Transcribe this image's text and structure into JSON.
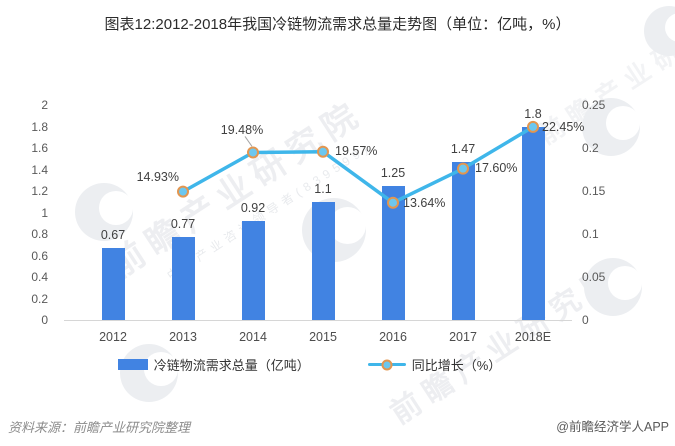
{
  "title": "图表12:2012-2018年我国冷链物流需求总量走势图（单位：亿吨，%）",
  "chart_data": {
    "type": "combo",
    "categories": [
      "2012",
      "2013",
      "2014",
      "2015",
      "2016",
      "2017",
      "2018E"
    ],
    "series": [
      {
        "name": "冷链物流需求总量（亿吨）",
        "type": "bar",
        "axis": "left",
        "color": "#4183e2",
        "values": [
          0.67,
          0.77,
          0.92,
          1.1,
          1.25,
          1.47,
          1.8
        ],
        "labels": [
          "0.67",
          "0.77",
          "0.92",
          "1.1",
          "1.25",
          "1.47",
          "1.8"
        ]
      },
      {
        "name": "同比增长（%）",
        "type": "line",
        "axis": "right",
        "color": "#3fb6ea",
        "marker_fill": "#6cc7ef",
        "marker_stroke": "#e39650",
        "values": [
          null,
          0.1493,
          0.1948,
          0.1957,
          0.1364,
          0.176,
          0.2245
        ],
        "labels": [
          "",
          "14.93%",
          "19.48%",
          "19.57%",
          "13.64%",
          "17.60%",
          "22.45%"
        ]
      }
    ],
    "left_axis": {
      "min": 0,
      "max": 2,
      "ticks": [
        "2",
        "1.8",
        "1.6",
        "1.4",
        "1.2",
        "1",
        "0.8",
        "0.6",
        "0.4",
        "0.2",
        "0"
      ]
    },
    "right_axis": {
      "min": 0,
      "max": 0.25,
      "ticks": [
        "0.25",
        "0.2",
        "0.15",
        "0.1",
        "0.05",
        "0"
      ]
    },
    "grid": false,
    "legend_position": "bottom"
  },
  "watermark": {
    "text": "前瞻产业研究院",
    "subtext": "中国产业咨询领导者(839599)"
  },
  "footer": {
    "source": "资料来源：前瞻产业研究院整理",
    "credit": "@前瞻经济学人APP"
  }
}
